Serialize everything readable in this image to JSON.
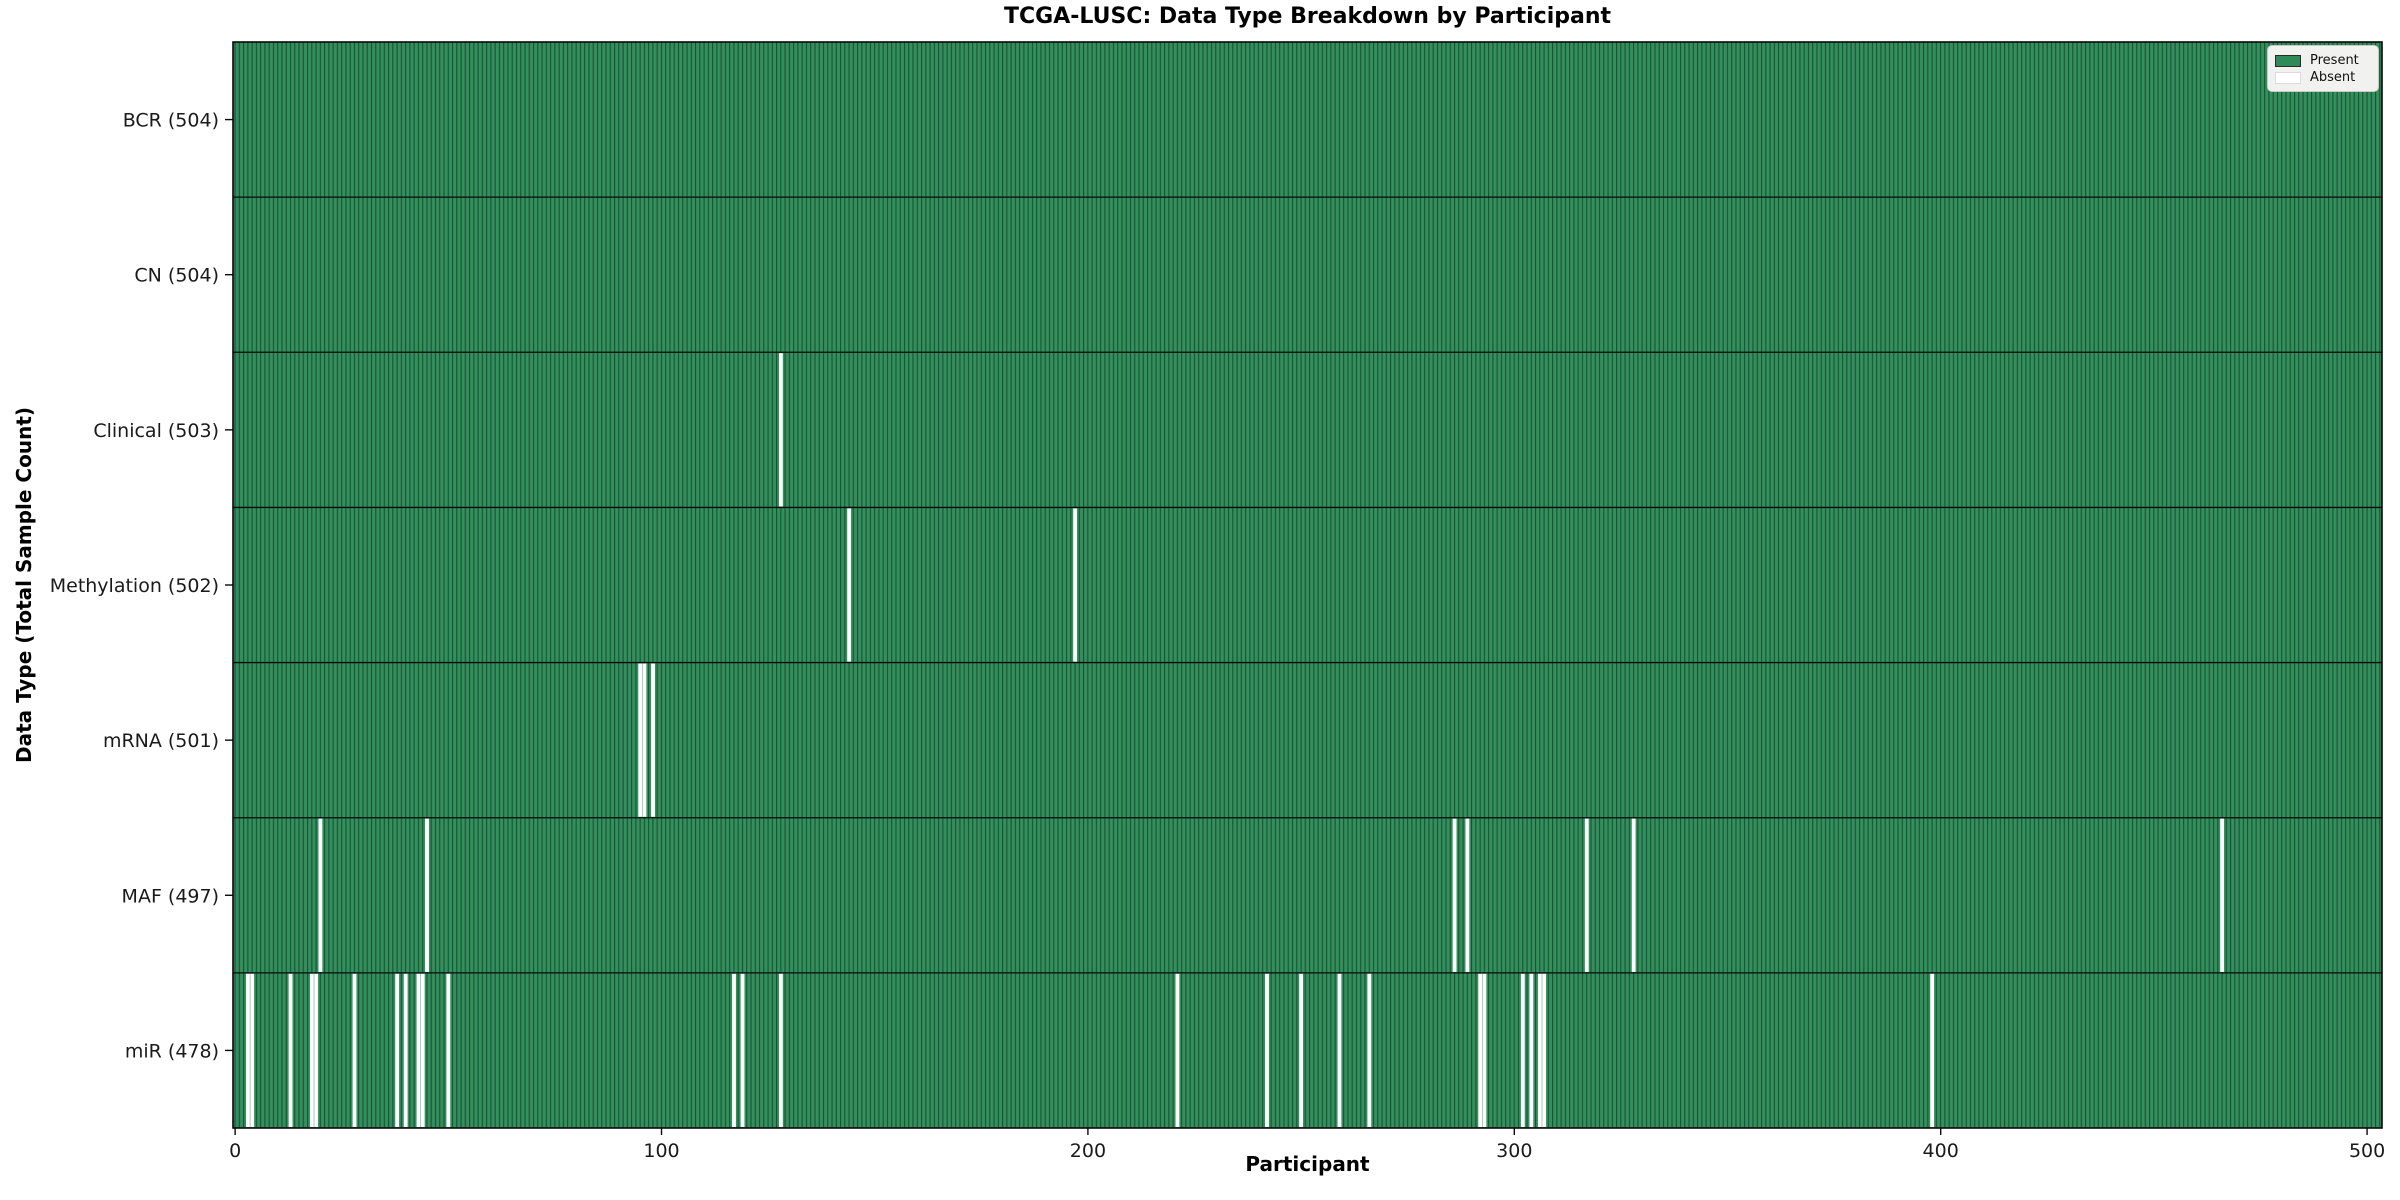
{
  "chart_data": {
    "type": "heatmap",
    "title": "TCGA-LUSC: Data Type Breakdown by Participant",
    "xlabel": "Participant",
    "ylabel": "Data Type (Total Sample Count)",
    "n_participants": 504,
    "xlim": [
      -0.5,
      503.5
    ],
    "x_ticks": [
      0,
      100,
      200,
      300,
      400,
      500
    ],
    "grid": false,
    "legend_position": "upper right",
    "legend": [
      {
        "label": "Present",
        "color": "#2e8b57"
      },
      {
        "label": "Absent",
        "color": "#ffffff"
      }
    ],
    "colors": {
      "present": "#31905c",
      "absent": "#ffffff",
      "bar_edge": "#1e4f35",
      "frame": "#0a0a0a",
      "tick_text": "#1a1a1a"
    },
    "rows": [
      {
        "name": "BCR",
        "total": 504,
        "display": "BCR (504)",
        "absent": []
      },
      {
        "name": "CN",
        "total": 504,
        "display": "CN (504)",
        "absent": []
      },
      {
        "name": "Clinical",
        "total": 503,
        "display": "Clinical (503)",
        "absent": [
          128
        ]
      },
      {
        "name": "Methylation",
        "total": 502,
        "display": "Methylation (502)",
        "absent": [
          144,
          197
        ]
      },
      {
        "name": "mRNA",
        "total": 501,
        "display": "mRNA (501)",
        "absent": [
          95,
          96,
          98
        ]
      },
      {
        "name": "MAF",
        "total": 497,
        "display": "MAF (497)",
        "absent": [
          20,
          45,
          286,
          289,
          317,
          328,
          466
        ]
      },
      {
        "name": "miR",
        "total": 478,
        "display": "miR (478)",
        "absent": [
          3,
          4,
          13,
          18,
          19,
          28,
          38,
          40,
          43,
          44,
          50,
          117,
          119,
          128,
          221,
          242,
          250,
          259,
          266,
          292,
          293,
          302,
          304,
          306,
          307,
          398
        ]
      }
    ]
  }
}
